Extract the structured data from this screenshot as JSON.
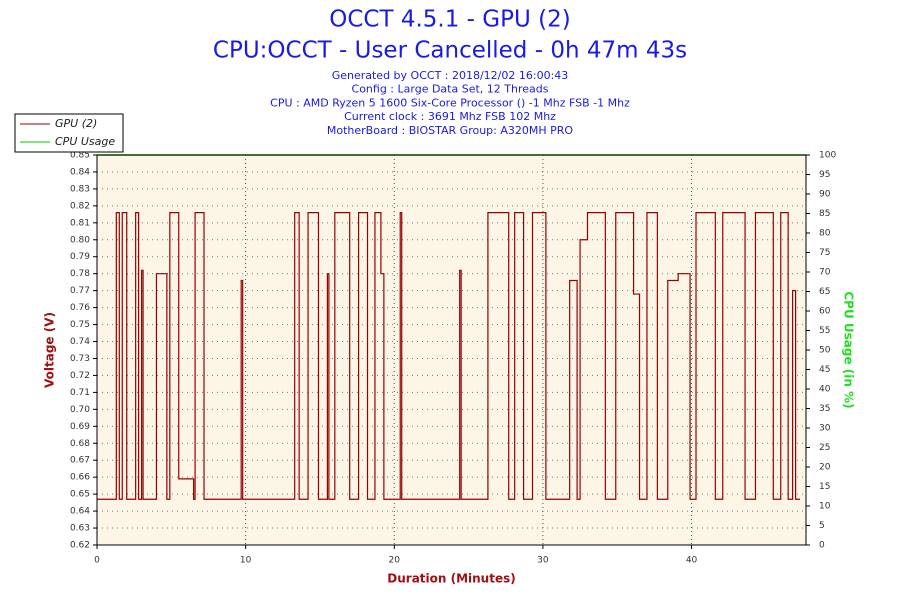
{
  "chart_data": {
    "type": "line",
    "title": "OCCT 4.5.1 - GPU (2)",
    "subtitle": "CPU:OCCT - User Cancelled - 0h 47m 43s",
    "info": [
      "Generated by OCCT : 2018/12/02 16:00:43",
      "Config : Large Data Set, 12 Threads",
      "CPU : AMD Ryzen 5 1600 Six-Core Processor () -1 Mhz FSB -1 Mhz",
      "Current clock : 3691 Mhz FSB 102 Mhz",
      "MotherBoard : BIOSTAR Group: A320MH PRO"
    ],
    "x_label": "Duration (Minutes)",
    "y_label": "Voltage (V)",
    "y2_label": "CPU Usage (in %)",
    "xlim": [
      0,
      47.7
    ],
    "xticks": [
      0,
      10,
      20,
      30,
      40
    ],
    "ylim": [
      0.62,
      0.85
    ],
    "yticks": [
      0.62,
      0.63,
      0.64,
      0.65,
      0.66,
      0.67,
      0.68,
      0.69,
      {
        "value": 0.7,
        "label": "0.70"
      },
      0.71,
      0.72,
      0.73,
      0.74,
      0.75,
      0.76,
      0.77,
      0.78,
      0.79,
      {
        "value": 0.8,
        "label": "0.80"
      },
      0.81,
      0.82,
      0.83,
      0.84,
      0.85
    ],
    "y2lim": [
      0,
      100
    ],
    "y2ticks": [
      0,
      5,
      10,
      15,
      20,
      25,
      30,
      35,
      40,
      45,
      50,
      55,
      60,
      65,
      70,
      75,
      80,
      85,
      90,
      95,
      100
    ],
    "grid": true,
    "legend": "top-left",
    "series": [
      {
        "name": "GPU (2)",
        "color": "#990000",
        "x": [
          0,
          1.3,
          1.3,
          1.5,
          1.5,
          1.7,
          1.7,
          2.0,
          2.0,
          2.6,
          2.6,
          2.8,
          2.8,
          3.0,
          3.0,
          3.1,
          3.1,
          4.0,
          4.0,
          4.7,
          4.7,
          4.9,
          4.9,
          5.5,
          5.5,
          6.5,
          6.5,
          6.6,
          6.6,
          7.2,
          7.2,
          9.7,
          9.7,
          9.8,
          9.8,
          13.3,
          13.3,
          13.6,
          13.6,
          14.2,
          14.2,
          14.9,
          14.9,
          15.5,
          15.5,
          15.6,
          15.6,
          16.0,
          16.0,
          17.0,
          17.0,
          17.6,
          17.6,
          18.2,
          18.2,
          18.7,
          18.7,
          19.1,
          19.1,
          19.3,
          19.3,
          20.4,
          20.4,
          20.5,
          20.5,
          24.4,
          24.4,
          24.5,
          24.5,
          26.3,
          26.3,
          27.7,
          27.7,
          28.1,
          28.1,
          28.7,
          28.7,
          29.3,
          29.3,
          30.2,
          30.2,
          31.8,
          31.8,
          32.3,
          32.3,
          32.5,
          32.5,
          33.0,
          33.0,
          34.2,
          34.2,
          34.9,
          34.9,
          36.1,
          36.1,
          36.5,
          36.5,
          37.0,
          37.0,
          37.7,
          37.7,
          38.4,
          38.4,
          39.1,
          39.1,
          39.9,
          39.9,
          40.3,
          40.3,
          41.6,
          41.6,
          42.1,
          42.1,
          43.6,
          43.6,
          44.3,
          44.3,
          45.5,
          45.5,
          46.0,
          46.0,
          46.5,
          46.5,
          46.8,
          46.8,
          47.0,
          47.0,
          47.3
        ],
        "values": [
          0.647,
          0.647,
          0.816,
          0.816,
          0.647,
          0.647,
          0.816,
          0.816,
          0.647,
          0.647,
          0.816,
          0.816,
          0.647,
          0.647,
          0.782,
          0.782,
          0.647,
          0.647,
          0.78,
          0.78,
          0.647,
          0.647,
          0.816,
          0.816,
          0.659,
          0.659,
          0.647,
          0.647,
          0.816,
          0.816,
          0.647,
          0.647,
          0.776,
          0.776,
          0.647,
          0.647,
          0.816,
          0.816,
          0.647,
          0.647,
          0.816,
          0.816,
          0.647,
          0.647,
          0.78,
          0.78,
          0.647,
          0.647,
          0.816,
          0.816,
          0.647,
          0.647,
          0.816,
          0.816,
          0.647,
          0.647,
          0.816,
          0.816,
          0.78,
          0.78,
          0.647,
          0.647,
          0.816,
          0.816,
          0.647,
          0.647,
          0.782,
          0.782,
          0.647,
          0.647,
          0.816,
          0.816,
          0.647,
          0.647,
          0.816,
          0.816,
          0.647,
          0.647,
          0.816,
          0.816,
          0.647,
          0.647,
          0.776,
          0.776,
          0.647,
          0.647,
          0.8,
          0.8,
          0.816,
          0.816,
          0.647,
          0.647,
          0.816,
          0.816,
          0.768,
          0.768,
          0.647,
          0.647,
          0.816,
          0.816,
          0.647,
          0.647,
          0.776,
          0.776,
          0.78,
          0.78,
          0.647,
          0.647,
          0.816,
          0.816,
          0.647,
          0.647,
          0.816,
          0.816,
          0.647,
          0.647,
          0.816,
          0.816,
          0.647,
          0.647,
          0.816,
          0.816,
          0.647,
          0.647,
          0.77,
          0.77,
          0.647,
          0.647
        ]
      },
      {
        "name": "CPU Usage",
        "color": "#00cc00",
        "axis": "y2",
        "x": [
          0,
          47.7
        ],
        "values": [
          100,
          100
        ]
      }
    ]
  }
}
